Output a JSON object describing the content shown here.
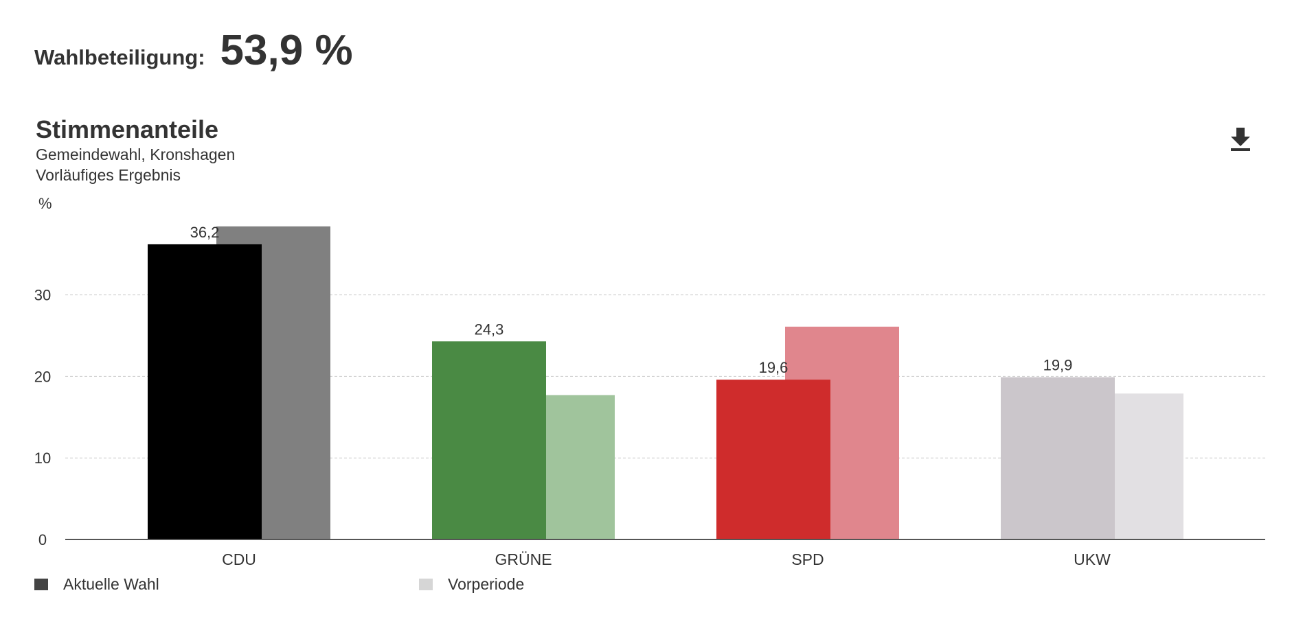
{
  "turnout": {
    "label": "Wahlbeteiligung:",
    "value": "53,9 %"
  },
  "chart_data": {
    "type": "bar",
    "title": "Stimmenanteile",
    "subtitle": [
      "Gemeindewahl, Kronshagen",
      "Vorläufiges Ergebnis"
    ],
    "ylabel": "%",
    "xlabel": "",
    "ylim": [
      0,
      40
    ],
    "yticks": [
      0,
      10,
      20,
      30
    ],
    "grid": true,
    "categories": [
      "CDU",
      "GRÜNE",
      "SPD",
      "UKW"
    ],
    "series": [
      {
        "name": "Aktuelle Wahl",
        "values": [
          36.2,
          24.3,
          19.6,
          19.9
        ],
        "labels": [
          "36,2",
          "24,3",
          "19,6",
          "19,9"
        ],
        "colors": [
          "#000000",
          "#4a8a44",
          "#cf2c2c",
          "#cbc6cb"
        ]
      },
      {
        "name": "Vorperiode",
        "values": [
          38.4,
          17.7,
          26.1,
          17.9
        ],
        "colors": [
          "#808080",
          "#a0c49c",
          "#e0868d",
          "#e2e0e3"
        ]
      }
    ],
    "legend_position": "bottom-left",
    "legend_colors": [
      "#444444",
      "#d6d6d6"
    ]
  },
  "icons": {
    "download": "download-icon"
  }
}
